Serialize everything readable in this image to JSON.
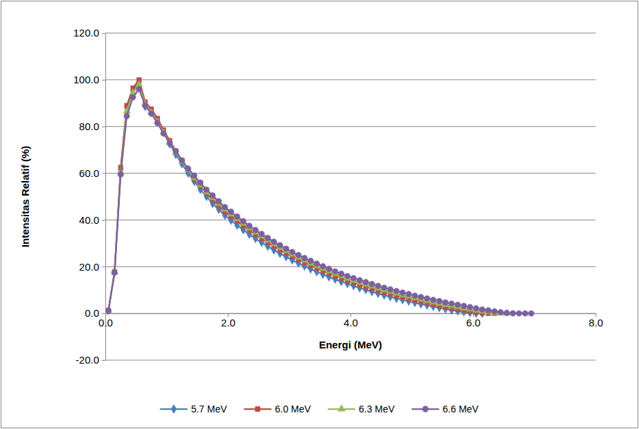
{
  "chart_data": {
    "type": "line",
    "x_label": "Energi (MeV)",
    "y_label": "Intensitas Relatif (%)",
    "xlim": [
      0,
      8
    ],
    "ylim": [
      -20,
      120
    ],
    "xticks": [
      {
        "value": 0,
        "label": "0.0"
      },
      {
        "value": 2,
        "label": "2.0"
      },
      {
        "value": 4,
        "label": "4.0"
      },
      {
        "value": 6,
        "label": "6.0"
      },
      {
        "value": 8,
        "label": "8.0"
      }
    ],
    "yticks": [
      {
        "value": -20,
        "label": "-20.0"
      },
      {
        "value": 0,
        "label": "0.0"
      },
      {
        "value": 20,
        "label": "20.0"
      },
      {
        "value": 40,
        "label": "40.0"
      },
      {
        "value": 60,
        "label": "60.0"
      },
      {
        "value": 80,
        "label": "80.0"
      },
      {
        "value": 100,
        "label": "100.0"
      },
      {
        "value": 120,
        "label": "120.0"
      }
    ],
    "grid": true,
    "legend": "bottom",
    "x": [
      0.05,
      0.15,
      0.25,
      0.35,
      0.45,
      0.55,
      0.65,
      0.75,
      0.85,
      0.95,
      1.05,
      1.15,
      1.25,
      1.35,
      1.45,
      1.55,
      1.65,
      1.75,
      1.85,
      1.95,
      2.05,
      2.15,
      2.25,
      2.35,
      2.45,
      2.55,
      2.65,
      2.75,
      2.85,
      2.95,
      3.05,
      3.15,
      3.25,
      3.35,
      3.45,
      3.55,
      3.65,
      3.75,
      3.85,
      3.95,
      4.05,
      4.15,
      4.25,
      4.35,
      4.45,
      4.55,
      4.65,
      4.75,
      4.85,
      4.95,
      5.05,
      5.15,
      5.25,
      5.35,
      5.45,
      5.55,
      5.65,
      5.75,
      5.85,
      5.95,
      6.05,
      6.15,
      6.25,
      6.35,
      6.45,
      6.55,
      6.65,
      6.75,
      6.85,
      6.95
    ],
    "series": [
      {
        "name": "5.7 MeV",
        "color": "#4a7ebb",
        "marker": "diamond",
        "values": [
          1.2,
          17.5,
          61.5,
          88,
          95.5,
          99,
          88.5,
          86,
          82,
          77.5,
          72.5,
          68,
          64,
          60,
          56.5,
          53,
          50,
          47,
          44.5,
          42,
          39.8,
          37.7,
          35.7,
          33.8,
          32,
          30.3,
          28.7,
          27.1,
          25.6,
          24.2,
          22.8,
          21.5,
          20.2,
          19,
          17.8,
          16.7,
          15.6,
          14.6,
          13.6,
          12.7,
          11.8,
          10.9,
          10.1,
          9.3,
          8.5,
          7.8,
          7.1,
          6.4,
          5.8,
          5.2,
          4.6,
          4,
          3.5,
          2.9,
          2.4,
          1.9,
          1.4,
          1,
          0.6,
          0.3,
          0.05,
          0,
          null,
          null,
          null,
          null,
          null,
          null,
          null,
          null
        ]
      },
      {
        "name": "6.0 MeV",
        "color": "#be4b48",
        "marker": "square",
        "values": [
          1.2,
          17.8,
          62.5,
          89,
          96.5,
          100,
          90.5,
          87.5,
          83.5,
          78.5,
          74,
          69.5,
          65.5,
          61.5,
          57.5,
          54.5,
          51.5,
          48.5,
          46,
          43.5,
          41.5,
          39.5,
          37.5,
          35.5,
          33.7,
          32,
          30.3,
          28.7,
          27.2,
          25.7,
          24.3,
          23,
          21.7,
          20.5,
          19.3,
          18.2,
          17.1,
          16,
          15,
          14,
          13.1,
          12.2,
          11.4,
          10.6,
          9.8,
          9,
          8.3,
          7.6,
          6.9,
          6.3,
          5.6,
          5,
          4.4,
          3.8,
          3.3,
          2.7,
          2.2,
          1.7,
          1.3,
          0.9,
          0.5,
          0.2,
          0,
          0,
          null,
          null,
          null,
          null,
          null,
          null
        ]
      },
      {
        "name": "6.3 MeV",
        "color": "#98b954",
        "marker": "triangle",
        "values": [
          1.2,
          17.5,
          60.5,
          86.5,
          94.5,
          98,
          89.5,
          86,
          82,
          77.5,
          73,
          69,
          65,
          61.5,
          58,
          55,
          52,
          49.5,
          47,
          44.5,
          42.5,
          40.5,
          38.5,
          36.5,
          34.7,
          33,
          31.3,
          29.7,
          28.2,
          26.7,
          25.3,
          24,
          22.7,
          21.5,
          20.3,
          19.2,
          18.1,
          17,
          16,
          15,
          14.1,
          13.2,
          12.4,
          11.6,
          10.8,
          10,
          9.3,
          8.6,
          7.9,
          7.3,
          6.6,
          6,
          5.4,
          4.8,
          4.3,
          3.7,
          3.2,
          2.7,
          2.2,
          1.8,
          1.3,
          0.9,
          0.6,
          0.3,
          0.1,
          0,
          null,
          null,
          null,
          null
        ]
      },
      {
        "name": "6.6 MeV",
        "color": "#7d60a0",
        "marker": "circle",
        "values": [
          1.2,
          17.5,
          59.5,
          84.5,
          92.5,
          96,
          89,
          85.5,
          81.5,
          77,
          73,
          69.5,
          65.5,
          62,
          59,
          56,
          53,
          50.5,
          48,
          45.5,
          43.5,
          41.5,
          39.5,
          37.5,
          35.7,
          34,
          32.3,
          30.7,
          29.2,
          27.7,
          26.3,
          25,
          23.7,
          22.5,
          21.3,
          20.2,
          19.1,
          18,
          17,
          16,
          15.1,
          14.2,
          13.4,
          12.6,
          11.8,
          11,
          10.3,
          9.6,
          8.9,
          8.3,
          7.6,
          7,
          6.4,
          5.8,
          5.3,
          4.7,
          4.2,
          3.7,
          3.2,
          2.7,
          2.2,
          1.7,
          1.3,
          0.9,
          0.5,
          0.2,
          0.05,
          0,
          0,
          0
        ]
      }
    ]
  }
}
